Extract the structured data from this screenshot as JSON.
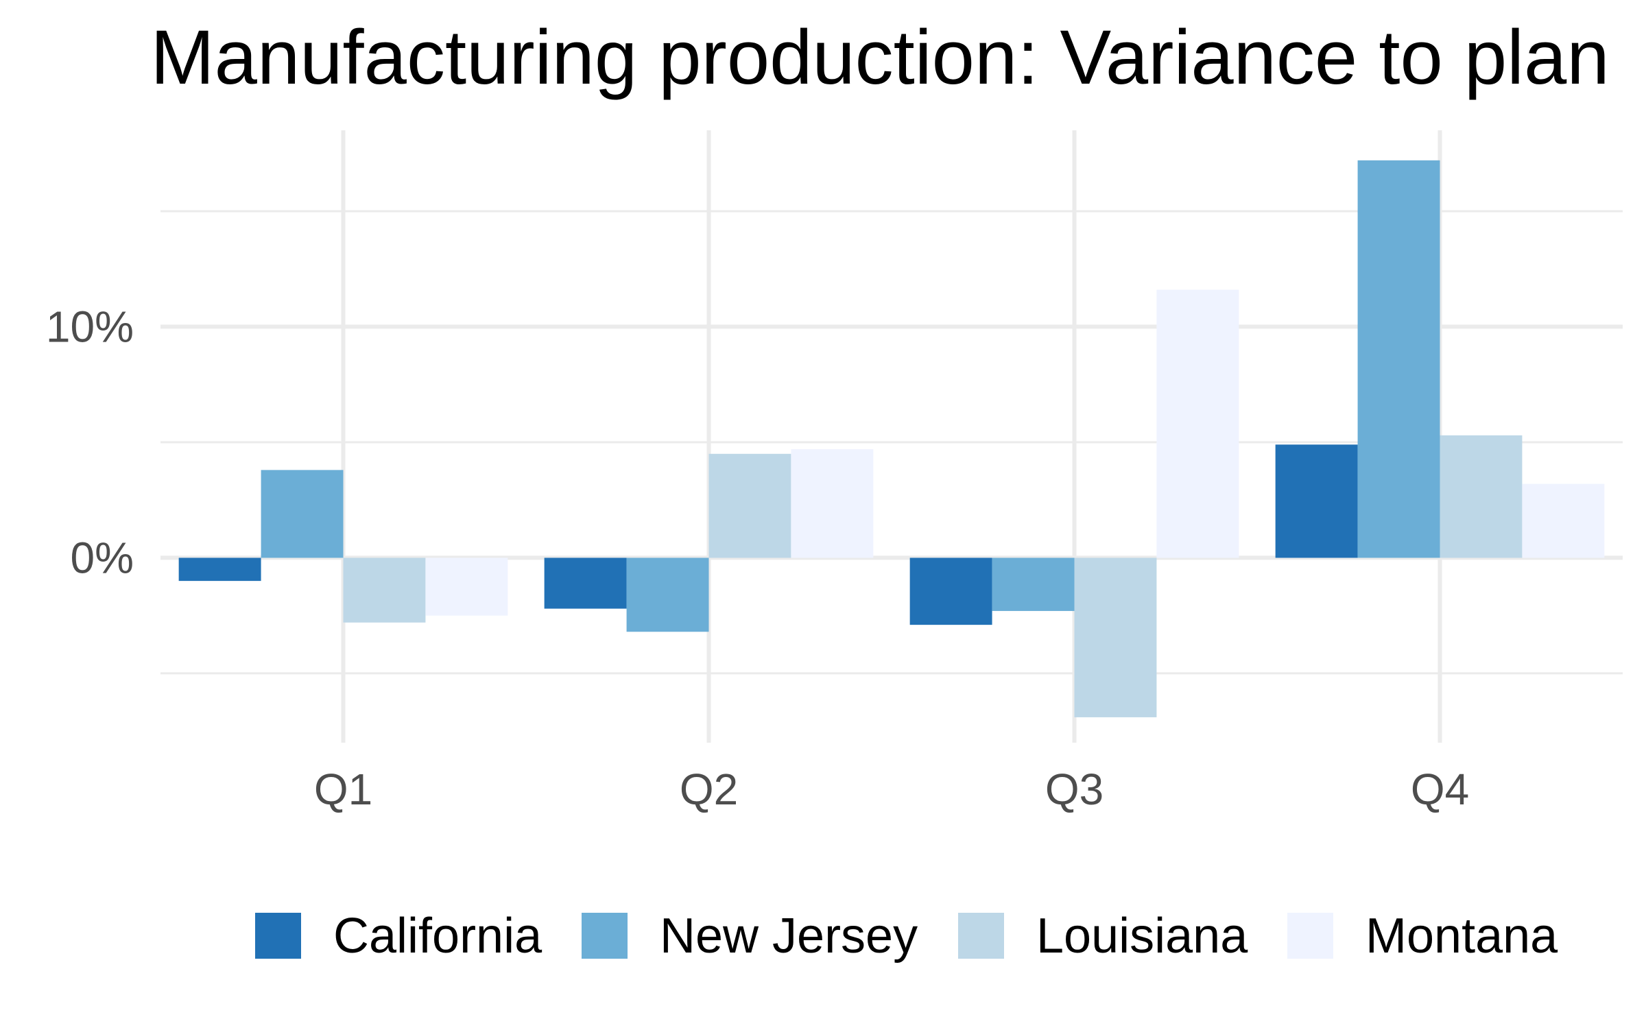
{
  "chart_data": {
    "type": "bar",
    "title": "Manufacturing production: Variance to plan",
    "xlabel": "",
    "ylabel": "",
    "categories": [
      "Q1",
      "Q2",
      "Q3",
      "Q4"
    ],
    "series": [
      {
        "name": "California",
        "color": "#2171b5",
        "values": [
          -1.0,
          -2.2,
          -2.9,
          4.9
        ]
      },
      {
        "name": "New Jersey",
        "color": "#6baed6",
        "values": [
          3.8,
          -3.2,
          -2.3,
          17.2
        ]
      },
      {
        "name": "Louisiana",
        "color": "#bdd7e7",
        "values": [
          -2.8,
          4.5,
          -6.9,
          5.3
        ]
      },
      {
        "name": "Montana",
        "color": "#eff3ff",
        "values": [
          -2.5,
          4.7,
          11.6,
          3.2
        ]
      }
    ],
    "ylim": [
      -8,
      18.5
    ],
    "y_ticks": [
      0,
      10
    ],
    "y_tick_labels": [
      "0%",
      "10%"
    ],
    "y_minor_ticks": [
      -5,
      5,
      15
    ],
    "grid": true,
    "legend_position": "bottom"
  }
}
